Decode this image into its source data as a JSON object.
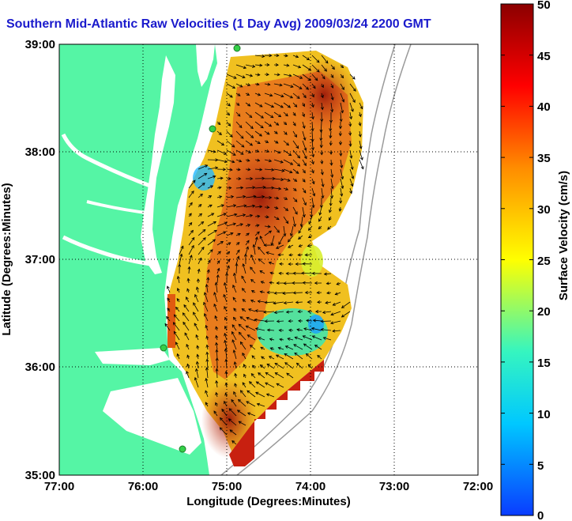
{
  "map": {
    "title": "Southern Mid-Atlantic Raw Velocities (1 Day Avg) 2009/03/24 2200 GMT",
    "x_axis_label": "Longitude (Degrees:Minutes)",
    "y_axis_label": "Latitude (Degrees:Minutes)",
    "x_ticks": [
      "77:00",
      "76:00",
      "75:00",
      "74:00",
      "73:00",
      "72:00"
    ],
    "y_ticks": [
      "39:00",
      "38:00",
      "37:00",
      "36:00",
      "35:00"
    ],
    "x_range_deg_west": [
      77,
      72
    ],
    "y_range_deg_north": [
      35,
      39
    ],
    "grid": "dotted",
    "land_color": "#55f5a5",
    "water_color": "#ffffff"
  },
  "colorbar": {
    "label": "Surface Velocity (cm/s)",
    "ticks": [
      "50",
      "45",
      "40",
      "35",
      "30",
      "25",
      "20",
      "15",
      "10",
      "5",
      "0"
    ],
    "range": [
      0,
      50
    ],
    "colors_low_to_high": [
      "#0a3cff",
      "#00c8ff",
      "#35f5c0",
      "#ffff00",
      "#ff8c00",
      "#ff0000",
      "#8b0000"
    ]
  },
  "stations": [
    "station-north",
    "station-mid",
    "station-south-1",
    "station-south-2"
  ]
}
